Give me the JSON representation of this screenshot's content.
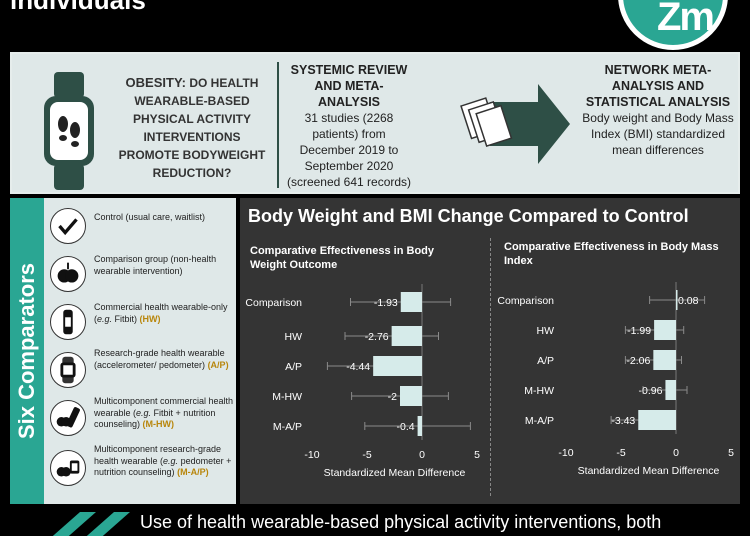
{
  "header": {
    "title": "individuals",
    "logo_text": "Zm"
  },
  "top": {
    "obesity_label": "OBESITY:",
    "obesity_question": "DO HEALTH WEARABLE-BASED PHYSICAL ACTIVITY INTERVENTIONS PROMOTE BODYWEIGHT REDUCTION?",
    "review_title": "SYSTEMIC REVIEW AND META-ANALYSIS",
    "review_body": "31 studies (2268 patients) from December 2019 to September 2020 (screened 641 records)",
    "nma_title": "NETWORK META-ANALYSIS AND STATISTICAL ANALYSIS",
    "nma_body": "Body weight and Body Mass Index (BMI) standardized mean differences"
  },
  "left": {
    "title": "Six Comparators",
    "items": [
      {
        "icon": "checkmark-icon",
        "text": "Control (usual care, waitlist)",
        "abbr": ""
      },
      {
        "icon": "apple-icon",
        "text": "Comparison group (non-health wearable intervention)",
        "abbr": ""
      },
      {
        "icon": "fitness-band-icon",
        "text_a": "Commercial health wearable-only (",
        "eg": "e.g.",
        "text_b": " Fitbit)",
        "abbr": "(HW)"
      },
      {
        "icon": "pedometer-icon",
        "text": "Research-grade health wearable (accelerometer/ pedometer)",
        "abbr": "(A/P)"
      },
      {
        "icon": "apple-band-icon",
        "text_a": "Multicomponent commercial health wearable (",
        "eg": "e.g.",
        "text_b": " Fitbit + nutrition counseling)",
        "abbr": "(M-HW)"
      },
      {
        "icon": "apple-pedometer-icon",
        "text_a": "Multicomponent research-grade health wearable (",
        "eg": "e.g.",
        "text_b": " pedometer + nutrition counseling)",
        "abbr": "(M-A/P)"
      }
    ]
  },
  "chart_panel": {
    "title": "Body Weight and BMI Change Compared to Control"
  },
  "chart_data": [
    {
      "type": "bar",
      "title": "Comparative Effectiveness in Body Weight Outcome",
      "xlabel": "Standardized Mean Difference",
      "categories": [
        "Comparison",
        "HW",
        "A/P",
        "M-HW",
        "M-A/P"
      ],
      "values": [
        -1.93,
        -2.76,
        -4.44,
        -2,
        -0.4
      ],
      "value_labels": [
        "-1.93",
        "-2.76",
        "-4.44",
        "-2",
        "-0.4"
      ],
      "ci_low": [
        -6.5,
        -7.0,
        -8.6,
        -6.4,
        -5.2
      ],
      "ci_high": [
        2.6,
        1.5,
        -0.3,
        2.4,
        4.4
      ],
      "xlim": [
        -10,
        5
      ],
      "xticks": [
        -10,
        -5,
        0,
        5
      ],
      "xtick_labels": [
        "-10",
        "-5",
        "0",
        "5"
      ],
      "bar_color": "#d6ebea"
    },
    {
      "type": "bar",
      "title": "Comparative Effectiveness in Body Mass Index",
      "xlabel": "Standardized Mean Difference",
      "categories": [
        "Comparison",
        "HW",
        "A/P",
        "M-HW",
        "M-A/P"
      ],
      "values": [
        0.08,
        -1.99,
        -2.06,
        -0.96,
        -3.43
      ],
      "value_labels": [
        "0.08",
        "-1.99",
        "-2.06",
        "-0.96",
        "-3.43"
      ],
      "ci_low": [
        -2.4,
        -4.6,
        -4.6,
        -3.0,
        -5.9
      ],
      "ci_high": [
        2.6,
        0.7,
        0.5,
        1.0,
        -1.0
      ],
      "xlim": [
        -10,
        5
      ],
      "xticks": [
        -10,
        -5,
        0,
        5
      ],
      "xtick_labels": [
        "-10",
        "-5",
        "0",
        "5"
      ],
      "bar_color": "#d6ebea"
    }
  ],
  "bottom": {
    "text": "Use of health wearable-based physical activity interventions, both"
  },
  "colors": {
    "teal": "#2aa693",
    "dark_green": "#2e4f46",
    "panel": "#343434",
    "light": "#dfe8e8",
    "abbr": "#b8860b"
  }
}
